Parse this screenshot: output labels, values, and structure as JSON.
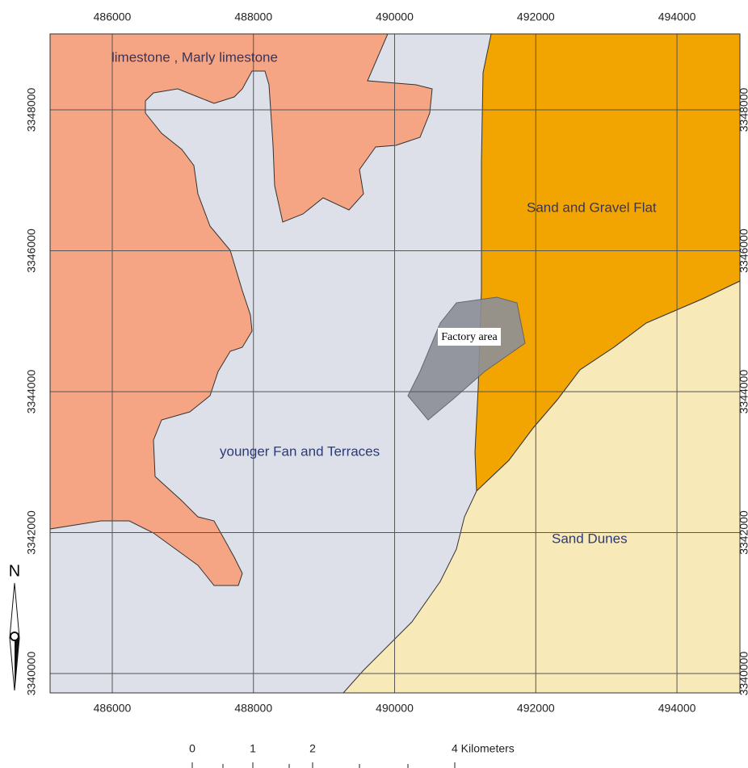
{
  "map": {
    "xlim": [
      485119,
      494892
    ],
    "ylim": [
      3339725,
      3349077
    ],
    "xticks": [
      486000,
      488000,
      490000,
      492000,
      494000
    ],
    "yticks": [
      3340000,
      3342000,
      3344000,
      3346000,
      3348000
    ],
    "grid": true
  },
  "labels": {
    "limestone": "limestone , Marly limestone",
    "gravel": "Sand and Gravel Flat",
    "fan": "younger Fan and Terraces",
    "dunes": "Sand Dunes",
    "factory": "Factory area"
  },
  "north": "N",
  "scale_bar": {
    "labels": [
      "0",
      "1",
      "2",
      "4 Kilometers"
    ]
  }
}
